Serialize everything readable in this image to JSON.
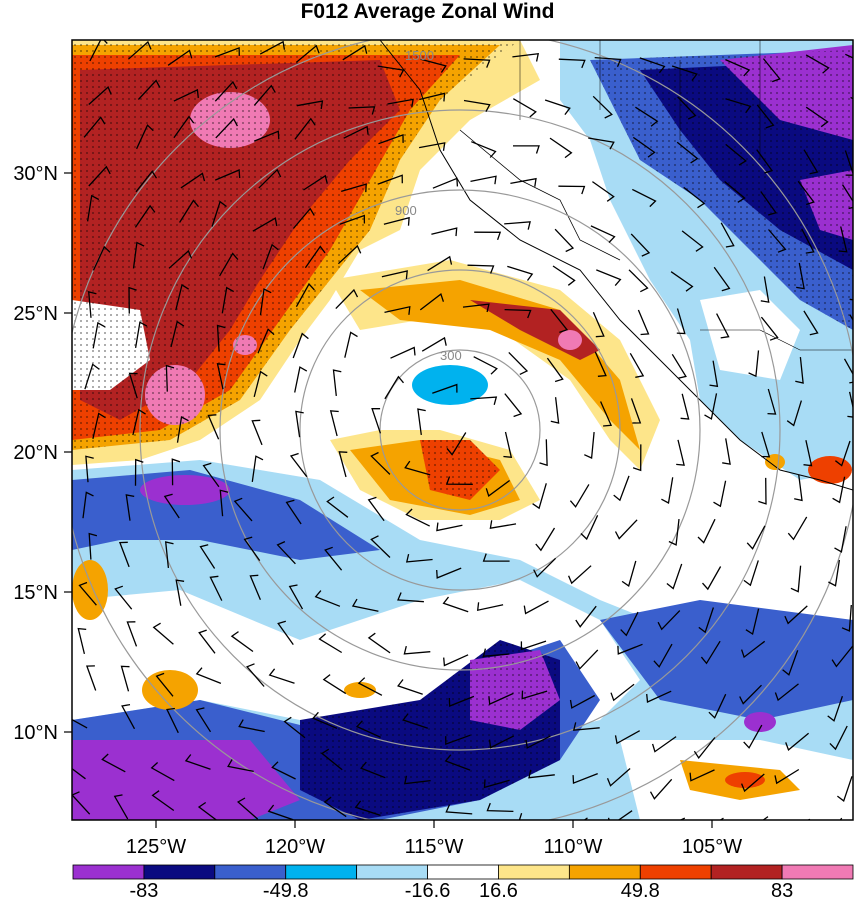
{
  "title": "F012 Average Zonal Wind",
  "lat_labels": [
    "30°N",
    "25°N",
    "20°N",
    "15°N",
    "10°N"
  ],
  "lon_labels": [
    "125°W",
    "120°W",
    "115°W",
    "110°W",
    "105°W"
  ],
  "colorbar": {
    "colors": [
      "#9b30d0",
      "#0a0a80",
      "#3a5fcd",
      "#00b2ee",
      "#a8dcf5",
      "#ffffff",
      "#fde58a",
      "#f5a300",
      "#ee4000",
      "#b22222",
      "#f07ab4"
    ],
    "labels": [
      "-83",
      "-49.8",
      "-16.6",
      "16.6",
      "49.8",
      "83"
    ]
  },
  "ring_labels": [
    "300",
    "900",
    "1500"
  ]
}
